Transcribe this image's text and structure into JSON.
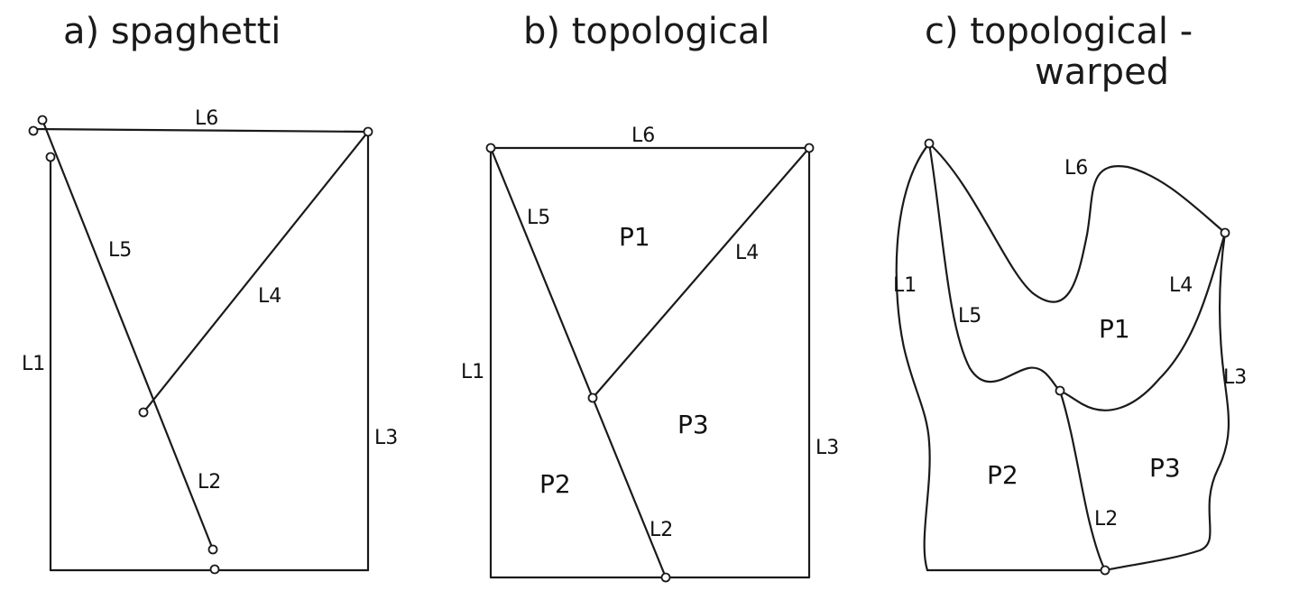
{
  "panels": [
    {
      "title": "a) spaghetti",
      "edges": [
        "L1",
        "L2",
        "L3",
        "L4",
        "L5",
        "L6"
      ]
    },
    {
      "title": "b) topological",
      "edges": [
        "L1",
        "L2",
        "L3",
        "L4",
        "L5",
        "L6"
      ],
      "polygons": [
        "P1",
        "P2",
        "P3"
      ]
    },
    {
      "title_line1": "c) topological -",
      "title_line2": "warped",
      "edges": [
        "L1",
        "L2",
        "L3",
        "L4",
        "L5",
        "L6"
      ],
      "polygons": [
        "P1",
        "P2",
        "P3"
      ]
    }
  ],
  "colors": {
    "line": "#1a1a1a",
    "node_fill": "#ffffff",
    "background": "#ffffff"
  }
}
